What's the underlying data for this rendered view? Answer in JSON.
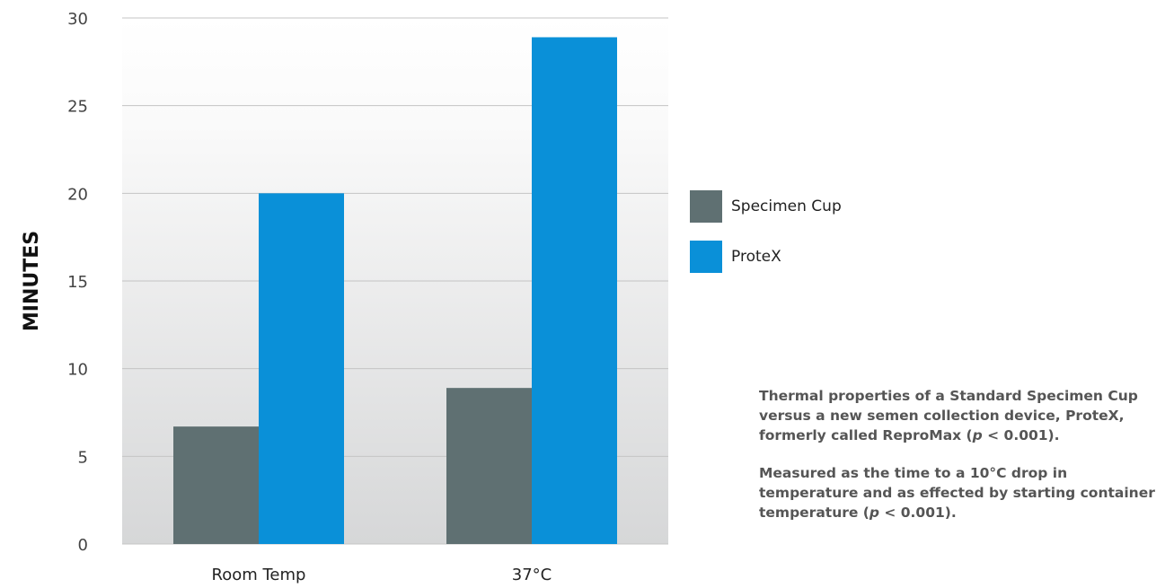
{
  "chart_data": {
    "type": "bar",
    "categories": [
      "Room Temp",
      "37°C"
    ],
    "series": [
      {
        "name": "Specimen Cup",
        "color": "#5f7072",
        "values": [
          6.7,
          8.9
        ]
      },
      {
        "name": "ProteX",
        "color": "#0a90d8",
        "values": [
          20,
          28.9
        ]
      }
    ],
    "ylabel": "MINUTES",
    "ylim": [
      0,
      30
    ],
    "yticks": [
      0,
      5,
      10,
      15,
      20,
      25,
      30
    ],
    "grid": true,
    "legend_position": "right"
  },
  "notes": [
    {
      "before": "Thermal properties of a Standard Specimen Cup versus a new semen collection device, ProteX, formerly called ReproMax (",
      "italic": "p",
      "after": " < 0.001)."
    },
    {
      "before": "Measured as the time to a 10°C drop in temperature and as effected by starting container temperature (",
      "italic": "p",
      "after": " < 0.001)."
    }
  ]
}
